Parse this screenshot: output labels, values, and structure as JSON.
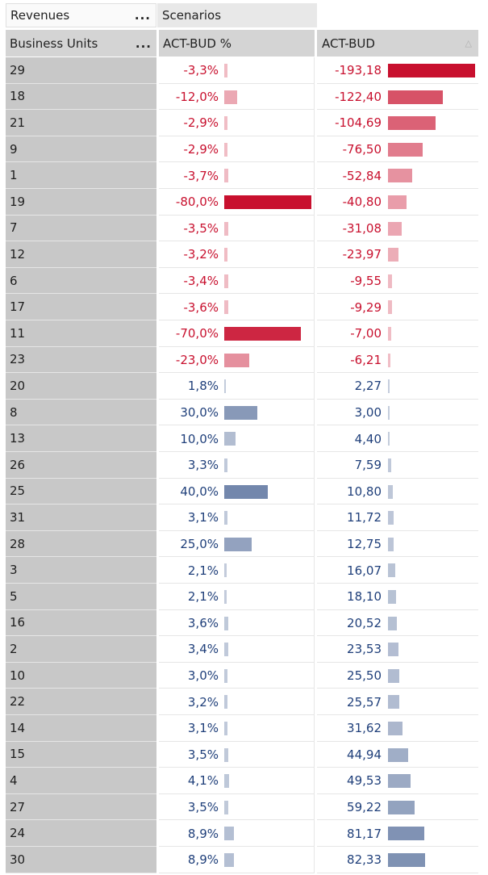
{
  "header": {
    "measure_label": "Revenues",
    "column_dim_label": "Scenarios",
    "row_dim_label": "Business Units",
    "col_pct_label": "ACT-BUD %",
    "col_abs_label": "ACT-BUD",
    "more": "..."
  },
  "colors": {
    "negative": "#c8102e",
    "positive": "#1f3f7a",
    "row_header_bg": "#c8c8c8"
  },
  "rows": [
    {
      "unit": "29",
      "pct": "-3,3%",
      "pct_value": -3.3,
      "abs": "-193,18",
      "abs_value": -193.18
    },
    {
      "unit": "18",
      "pct": "-12,0%",
      "pct_value": -12.0,
      "abs": "-122,40",
      "abs_value": -122.4
    },
    {
      "unit": "21",
      "pct": "-2,9%",
      "pct_value": -2.9,
      "abs": "-104,69",
      "abs_value": -104.69
    },
    {
      "unit": "9",
      "pct": "-2,9%",
      "pct_value": -2.9,
      "abs": "-76,50",
      "abs_value": -76.5
    },
    {
      "unit": "1",
      "pct": "-3,7%",
      "pct_value": -3.7,
      "abs": "-52,84",
      "abs_value": -52.84
    },
    {
      "unit": "19",
      "pct": "-80,0%",
      "pct_value": -80.0,
      "abs": "-40,80",
      "abs_value": -40.8
    },
    {
      "unit": "7",
      "pct": "-3,5%",
      "pct_value": -3.5,
      "abs": "-31,08",
      "abs_value": -31.08
    },
    {
      "unit": "12",
      "pct": "-3,2%",
      "pct_value": -3.2,
      "abs": "-23,97",
      "abs_value": -23.97
    },
    {
      "unit": "6",
      "pct": "-3,4%",
      "pct_value": -3.4,
      "abs": "-9,55",
      "abs_value": -9.55
    },
    {
      "unit": "17",
      "pct": "-3,6%",
      "pct_value": -3.6,
      "abs": "-9,29",
      "abs_value": -9.29
    },
    {
      "unit": "11",
      "pct": "-70,0%",
      "pct_value": -70.0,
      "abs": "-7,00",
      "abs_value": -7.0
    },
    {
      "unit": "23",
      "pct": "-23,0%",
      "pct_value": -23.0,
      "abs": "-6,21",
      "abs_value": -6.21
    },
    {
      "unit": "20",
      "pct": "1,8%",
      "pct_value": 1.8,
      "abs": "2,27",
      "abs_value": 2.27
    },
    {
      "unit": "8",
      "pct": "30,0%",
      "pct_value": 30.0,
      "abs": "3,00",
      "abs_value": 3.0
    },
    {
      "unit": "13",
      "pct": "10,0%",
      "pct_value": 10.0,
      "abs": "4,40",
      "abs_value": 4.4
    },
    {
      "unit": "26",
      "pct": "3,3%",
      "pct_value": 3.3,
      "abs": "7,59",
      "abs_value": 7.59
    },
    {
      "unit": "25",
      "pct": "40,0%",
      "pct_value": 40.0,
      "abs": "10,80",
      "abs_value": 10.8
    },
    {
      "unit": "31",
      "pct": "3,1%",
      "pct_value": 3.1,
      "abs": "11,72",
      "abs_value": 11.72
    },
    {
      "unit": "28",
      "pct": "25,0%",
      "pct_value": 25.0,
      "abs": "12,75",
      "abs_value": 12.75
    },
    {
      "unit": "3",
      "pct": "2,1%",
      "pct_value": 2.1,
      "abs": "16,07",
      "abs_value": 16.07
    },
    {
      "unit": "5",
      "pct": "2,1%",
      "pct_value": 2.1,
      "abs": "18,10",
      "abs_value": 18.1
    },
    {
      "unit": "16",
      "pct": "3,6%",
      "pct_value": 3.6,
      "abs": "20,52",
      "abs_value": 20.52
    },
    {
      "unit": "2",
      "pct": "3,4%",
      "pct_value": 3.4,
      "abs": "23,53",
      "abs_value": 23.53
    },
    {
      "unit": "10",
      "pct": "3,0%",
      "pct_value": 3.0,
      "abs": "25,50",
      "abs_value": 25.5
    },
    {
      "unit": "22",
      "pct": "3,2%",
      "pct_value": 3.2,
      "abs": "25,57",
      "abs_value": 25.57
    },
    {
      "unit": "14",
      "pct": "3,1%",
      "pct_value": 3.1,
      "abs": "31,62",
      "abs_value": 31.62
    },
    {
      "unit": "15",
      "pct": "3,5%",
      "pct_value": 3.5,
      "abs": "44,94",
      "abs_value": 44.94
    },
    {
      "unit": "4",
      "pct": "4,1%",
      "pct_value": 4.1,
      "abs": "49,53",
      "abs_value": 49.53
    },
    {
      "unit": "27",
      "pct": "3,5%",
      "pct_value": 3.5,
      "abs": "59,22",
      "abs_value": 59.22
    },
    {
      "unit": "24",
      "pct": "8,9%",
      "pct_value": 8.9,
      "abs": "81,17",
      "abs_value": 81.17
    },
    {
      "unit": "30",
      "pct": "8,9%",
      "pct_value": 8.9,
      "abs": "82,33",
      "abs_value": 82.33
    }
  ]
}
